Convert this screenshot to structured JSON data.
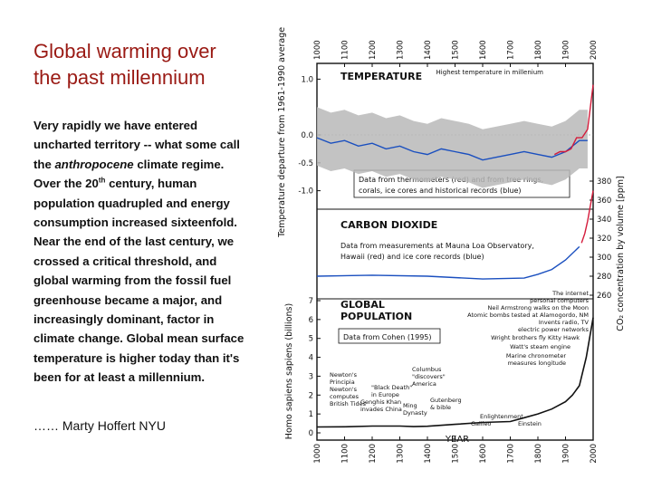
{
  "slide": {
    "title_line1": "Global warming over",
    "title_line2": "the past millennium",
    "body_lines": [
      "Very rapidly we have entered",
      "uncharted territory -- what some call",
      "the anthropocene climate regime.",
      "Over the 20th century, human",
      "population quadrupled and energy",
      "consumption increased sixteenfold.",
      "Near the end of the last century, we",
      "crossed a critical threshold, and",
      "global warming from the fossil fuel",
      "greenhouse became a major, and",
      "increasingly dominant, factor in",
      "climate change. Global mean surface",
      "temperature is higher today than it's",
      "been for at least a millennium."
    ],
    "body_parts": {
      "anthro_pre": "the ",
      "anthro_word": "anthropocene",
      "anthro_post": " climate regime.",
      "cent_pre": "Over the 20",
      "cent_sup": "th",
      "cent_post": " century, human"
    },
    "credit": "…… Marty Hoffert  NYU"
  },
  "figure": {
    "top_ticks": [
      "1000",
      "1100",
      "1200",
      "1300",
      "1400",
      "1500",
      "1600",
      "1700",
      "1800",
      "1900",
      "2000"
    ],
    "bottom_ticks": [
      "1000",
      "1100",
      "1200",
      "1300",
      "1400",
      "1500",
      "1600",
      "1700",
      "1800",
      "1900",
      "2000"
    ],
    "xlabel": "YEAR",
    "left_ylabel_top": "Temperature departure from 1961-1990 average (°C)",
    "left_ylabel_bottom": "Homo sapiens sapiens (billions)",
    "right_ylabel": "CO₂ concentration by volume [ppm]",
    "temp_ticks": [
      "1.0",
      "0.0",
      "-0.5",
      "-1.0"
    ],
    "co2_ticks": [
      "380",
      "360",
      "340",
      "320",
      "300",
      "280",
      "260"
    ],
    "pop_ticks": [
      "7",
      "6",
      "5",
      "4",
      "3",
      "2",
      "1",
      "0"
    ],
    "temperature_title": "TEMPERATURE",
    "temperature_note": "Highest temperature in millenium",
    "temperature_data_note_1": "Data from thermometers (red) and from tree rings,",
    "temperature_data_note_2": "corals, ice cores and historical records (blue)",
    "co2_title": "CARBON DIOXIDE",
    "co2_note_1": "Data from measurements at Mauna Loa Observatory,",
    "co2_note_2": "Hawaii (red) and ice core records (blue)",
    "pop_title_1": "GLOBAL",
    "pop_title_2": "POPULATION",
    "pop_note": "Data from Cohen (1995)",
    "events": [
      "The internet",
      "personal computers",
      "Neil Armstrong walks on the Moon",
      "Atomic bombs tested at Alamogordo, NM",
      "Invents radio, TV",
      "electric power networks",
      "Wright brothers fly Kitty Hawk",
      "Watt's steam engine",
      "Marine chronometer",
      "measures longitude",
      "Newton's",
      "Principia",
      "Newton's",
      "computes",
      "British Tides",
      "Columbus",
      "\"discovers\"",
      "America",
      "\"Black Death\"",
      "in Europe",
      "Genghis Khan",
      "invades China",
      "Ming",
      "Dynasty",
      "Gutenberg",
      "& bible",
      "Enlightenment",
      "Galileo",
      "Einstein"
    ],
    "colors": {
      "blue": "#1a4fbf",
      "red": "#d41a3a",
      "gray": "#b8b8b8",
      "black": "#111111",
      "title_red": "#9a1a14"
    }
  },
  "chart_data": [
    {
      "type": "line",
      "title": "TEMPERATURE",
      "ylabel": "Temperature departure from 1961-1990 average (°C)",
      "xlabel": "YEAR",
      "xlim": [
        1000,
        2000
      ],
      "ylim": [
        -1.25,
        1.25
      ],
      "series": [
        {
          "name": "historical records (blue)",
          "x": [
            1000,
            1050,
            1100,
            1150,
            1200,
            1250,
            1300,
            1350,
            1400,
            1450,
            1500,
            1550,
            1600,
            1650,
            1700,
            1750,
            1800,
            1850,
            1900,
            1950,
            1980
          ],
          "y": [
            -0.05,
            -0.15,
            -0.1,
            -0.2,
            -0.15,
            -0.25,
            -0.2,
            -0.3,
            -0.35,
            -0.25,
            -0.3,
            -0.35,
            -0.45,
            -0.4,
            -0.35,
            -0.3,
            -0.35,
            -0.4,
            -0.3,
            -0.1,
            -0.1
          ]
        },
        {
          "name": "thermometers (red)",
          "x": [
            1860,
            1880,
            1900,
            1920,
            1940,
            1960,
            1980,
            2000
          ],
          "y": [
            -0.35,
            -0.3,
            -0.3,
            -0.25,
            -0.05,
            -0.05,
            0.1,
            0.9
          ]
        }
      ]
    },
    {
      "type": "line",
      "title": "CARBON DIOXIDE",
      "ylabel": "CO₂ concentration by volume [ppm]",
      "xlim": [
        1000,
        2000
      ],
      "ylim": [
        260,
        380
      ],
      "series": [
        {
          "name": "ice core records (blue)",
          "x": [
            1000,
            1200,
            1400,
            1600,
            1750,
            1800,
            1850,
            1900,
            1950
          ],
          "y": [
            280,
            281,
            280,
            277,
            278,
            282,
            287,
            297,
            311
          ]
        },
        {
          "name": "Mauna Loa Observatory, Hawaii (red)",
          "x": [
            1958,
            1970,
            1980,
            1990,
            2000
          ],
          "y": [
            315,
            325,
            338,
            354,
            370
          ]
        }
      ]
    },
    {
      "type": "line",
      "title": "GLOBAL POPULATION",
      "ylabel": "Homo sapiens sapiens (billions)",
      "xlim": [
        1000,
        2000
      ],
      "ylim": [
        0,
        7
      ],
      "series": [
        {
          "name": "population",
          "x": [
            1000,
            1100,
            1200,
            1300,
            1350,
            1400,
            1500,
            1600,
            1700,
            1750,
            1800,
            1850,
            1900,
            1925,
            1950,
            1975,
            2000
          ],
          "y": [
            0.31,
            0.32,
            0.36,
            0.36,
            0.33,
            0.35,
            0.45,
            0.55,
            0.6,
            0.8,
            1.0,
            1.26,
            1.65,
            2.0,
            2.5,
            4.0,
            6.1
          ]
        }
      ]
    }
  ]
}
